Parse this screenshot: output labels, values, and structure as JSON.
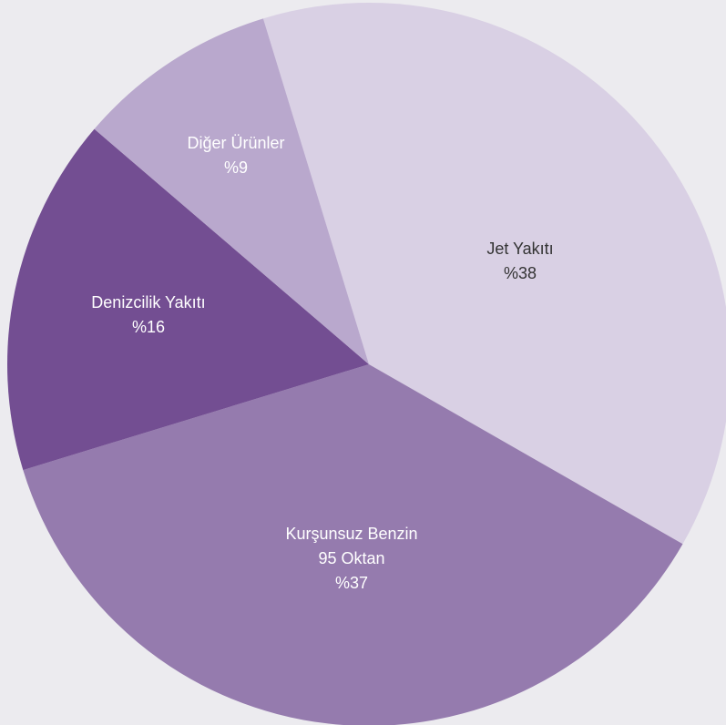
{
  "chart_data": {
    "type": "pie",
    "title": "",
    "slices": [
      {
        "name": "Jet Yakıtı",
        "value": 38,
        "label_lines": [
          "Jet Yakıtı",
          "%38"
        ],
        "color": "#D9D0E4",
        "text_color": "#333333"
      },
      {
        "name": "Kurşunsuz Benzin 95 Oktan",
        "value": 37,
        "label_lines": [
          "Kurşunsuz Benzin",
          "95 Oktan",
          "%37"
        ],
        "color": "#957BAE",
        "text_color": "#FFFFFF"
      },
      {
        "name": "Denizcilik Yakıtı",
        "value": 16,
        "label_lines": [
          "Denizcilik Yakıtı",
          "%16"
        ],
        "color": "#734E92",
        "text_color": "#FFFFFF"
      },
      {
        "name": "Diğer Ürünler",
        "value": 9,
        "label_lines": [
          "Diğer Ürünler",
          "%9"
        ],
        "color": "#B9A8CD",
        "text_color": "#FFFFFF"
      }
    ],
    "legend": "none",
    "start_angle_deg": -17,
    "direction": "clockwise"
  },
  "colors": {
    "background": "#ECEBEF"
  }
}
